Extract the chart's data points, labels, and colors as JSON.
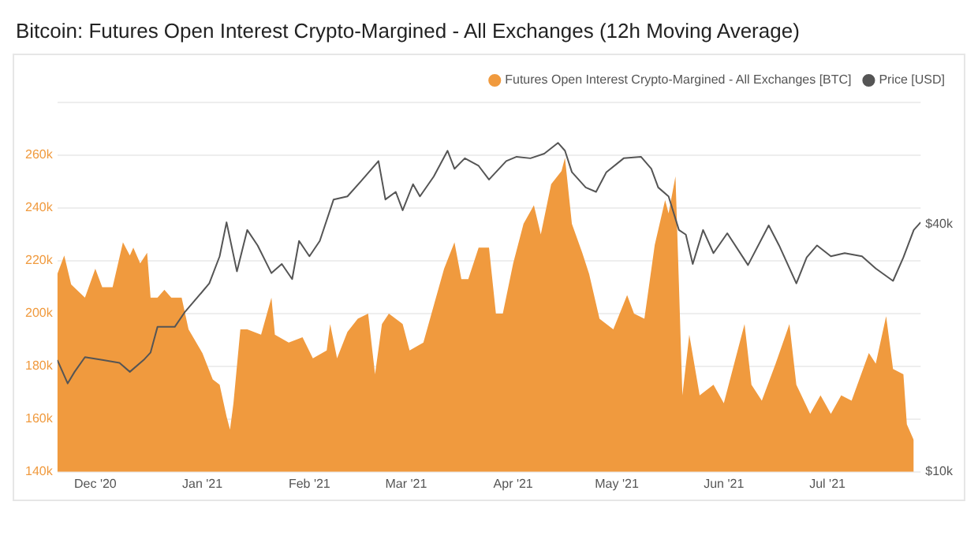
{
  "chart_data": {
    "type": "area",
    "title": "Bitcoin: Futures Open Interest Crypto-Margined - All Exchanges (12h Moving Average)",
    "xlim": [
      "2020-11-20",
      "2021-07-28"
    ],
    "xticks": [
      {
        "value": "2020-12-01",
        "label": "Dec '20"
      },
      {
        "value": "2021-01-01",
        "label": "Jan '21"
      },
      {
        "value": "2021-02-01",
        "label": "Feb '21"
      },
      {
        "value": "2021-03-01",
        "label": "Mar '21"
      },
      {
        "value": "2021-04-01",
        "label": "Apr '21"
      },
      {
        "value": "2021-05-01",
        "label": "May '21"
      },
      {
        "value": "2021-06-01",
        "label": "Jun '21"
      },
      {
        "value": "2021-07-01",
        "label": "Jul '21"
      }
    ],
    "ylim": [
      140000,
      280000
    ],
    "yticks": [
      {
        "value": 140000,
        "label": "140k"
      },
      {
        "value": 160000,
        "label": "160k"
      },
      {
        "value": 180000,
        "label": "180k"
      },
      {
        "value": 200000,
        "label": "200k"
      },
      {
        "value": 220000,
        "label": "220k"
      },
      {
        "value": 240000,
        "label": "240k"
      },
      {
        "value": 260000,
        "label": "260k"
      },
      {
        "value": 280000,
        "label": null
      }
    ],
    "y2lim": [
      10000,
      79000
    ],
    "y2ticks": [
      {
        "value": 10000,
        "label": "$10k"
      },
      {
        "value": 40000,
        "label": "$40k"
      }
    ],
    "log": "y2",
    "grid": "y",
    "legend": "top right",
    "marker": "none",
    "series": [
      {
        "name": "Futures Open Interest Crypto-Margined - All Exchanges [BTC]",
        "color": "#f09a3e",
        "x": [
          "2020-11-20",
          "2020-11-22",
          "2020-11-24",
          "2020-11-28",
          "2020-12-01",
          "2020-12-03",
          "2020-12-06",
          "2020-12-09",
          "2020-12-11",
          "2020-12-12",
          "2020-12-14",
          "2020-12-16",
          "2020-12-17",
          "2020-12-19",
          "2020-12-21",
          "2020-12-23",
          "2020-12-26",
          "2020-12-28",
          "2021-01-01",
          "2021-01-04",
          "2021-01-06",
          "2021-01-08",
          "2021-01-09",
          "2021-01-10",
          "2021-01-12",
          "2021-01-14",
          "2021-01-18",
          "2021-01-21",
          "2021-01-22",
          "2021-01-26",
          "2021-01-30",
          "2021-02-02",
          "2021-02-06",
          "2021-02-07",
          "2021-02-09",
          "2021-02-12",
          "2021-02-15",
          "2021-02-18",
          "2021-02-20",
          "2021-02-22",
          "2021-02-24",
          "2021-02-28",
          "2021-03-02",
          "2021-03-06",
          "2021-03-09",
          "2021-03-12",
          "2021-03-15",
          "2021-03-17",
          "2021-03-19",
          "2021-03-22",
          "2021-03-25",
          "2021-03-27",
          "2021-03-29",
          "2021-04-01",
          "2021-04-04",
          "2021-04-07",
          "2021-04-09",
          "2021-04-12",
          "2021-04-15",
          "2021-04-16",
          "2021-04-18",
          "2021-04-21",
          "2021-04-23",
          "2021-04-26",
          "2021-04-30",
          "2021-05-04",
          "2021-05-06",
          "2021-05-09",
          "2021-05-12",
          "2021-05-15",
          "2021-05-16",
          "2021-05-18",
          "2021-05-19",
          "2021-05-20",
          "2021-05-22",
          "2021-05-25",
          "2021-05-29",
          "2021-06-01",
          "2021-06-04",
          "2021-06-07",
          "2021-06-09",
          "2021-06-12",
          "2021-06-16",
          "2021-06-20",
          "2021-06-22",
          "2021-06-26",
          "2021-06-29",
          "2021-07-02",
          "2021-07-05",
          "2021-07-08",
          "2021-07-13",
          "2021-07-15",
          "2021-07-18",
          "2021-07-20",
          "2021-07-23",
          "2021-07-24",
          "2021-07-26"
        ],
        "values": [
          215000,
          222000,
          211000,
          206000,
          217000,
          210000,
          210000,
          227000,
          222000,
          225000,
          219000,
          223000,
          206000,
          206000,
          209000,
          206000,
          206000,
          194000,
          185000,
          175000,
          173000,
          161000,
          156000,
          166000,
          194000,
          194000,
          192000,
          206000,
          192000,
          189000,
          191000,
          183000,
          186000,
          196000,
          183000,
          193000,
          198000,
          200000,
          177000,
          196000,
          200000,
          196000,
          186000,
          189000,
          203000,
          217000,
          227000,
          213000,
          213000,
          225000,
          225000,
          200000,
          200000,
          219000,
          234000,
          241000,
          230000,
          249000,
          254000,
          259000,
          234000,
          223000,
          215000,
          198000,
          194000,
          207000,
          200000,
          198000,
          226000,
          243000,
          238000,
          252000,
          211000,
          169000,
          192000,
          169000,
          173000,
          166000,
          181000,
          196000,
          173000,
          167000,
          181000,
          196000,
          173000,
          162000,
          169000,
          162000,
          169000,
          167000,
          185000,
          181000,
          199000,
          179000,
          177000,
          158000,
          152000
        ]
      },
      {
        "name": "Price [USD]",
        "type": "line",
        "axis": "y2",
        "color": "#555555",
        "x": [
          "2020-11-20",
          "2020-11-23",
          "2020-11-25",
          "2020-11-28",
          "2020-12-03",
          "2020-12-08",
          "2020-12-11",
          "2020-12-15",
          "2020-12-17",
          "2020-12-19",
          "2020-12-24",
          "2020-12-27",
          "2020-12-31",
          "2021-01-03",
          "2021-01-06",
          "2021-01-08",
          "2021-01-11",
          "2021-01-14",
          "2021-01-17",
          "2021-01-21",
          "2021-01-24",
          "2021-01-27",
          "2021-01-29",
          "2021-02-01",
          "2021-02-04",
          "2021-02-08",
          "2021-02-12",
          "2021-02-16",
          "2021-02-21",
          "2021-02-23",
          "2021-02-26",
          "2021-02-28",
          "2021-03-03",
          "2021-03-05",
          "2021-03-09",
          "2021-03-13",
          "2021-03-15",
          "2021-03-18",
          "2021-03-22",
          "2021-03-25",
          "2021-03-30",
          "2021-04-02",
          "2021-04-06",
          "2021-04-10",
          "2021-04-14",
          "2021-04-16",
          "2021-04-18",
          "2021-04-22",
          "2021-04-25",
          "2021-04-28",
          "2021-05-03",
          "2021-05-08",
          "2021-05-11",
          "2021-05-13",
          "2021-05-16",
          "2021-05-19",
          "2021-05-21",
          "2021-05-23",
          "2021-05-26",
          "2021-05-29",
          "2021-06-02",
          "2021-06-08",
          "2021-06-14",
          "2021-06-17",
          "2021-06-22",
          "2021-06-25",
          "2021-06-28",
          "2021-07-02",
          "2021-07-06",
          "2021-07-11",
          "2021-07-15",
          "2021-07-20",
          "2021-07-23",
          "2021-07-26",
          "2021-07-28"
        ],
        "values": [
          18700,
          16400,
          17500,
          19000,
          18700,
          18400,
          17500,
          18700,
          19500,
          22500,
          22500,
          24500,
          26800,
          28700,
          33400,
          40400,
          30700,
          38700,
          35500,
          30400,
          32000,
          29400,
          36400,
          33400,
          36400,
          45900,
          46700,
          50900,
          56900,
          45900,
          47900,
          43200,
          50000,
          46700,
          52200,
          60300,
          54500,
          57800,
          55400,
          51300,
          56900,
          58300,
          57800,
          59300,
          63000,
          60300,
          53500,
          49100,
          47900,
          53500,
          57800,
          58300,
          54500,
          49100,
          46700,
          38700,
          37700,
          32000,
          38700,
          34000,
          38000,
          31800,
          39700,
          35500,
          28700,
          33200,
          35500,
          33400,
          34000,
          33400,
          31200,
          29100,
          33200,
          38700,
          40400
        ]
      }
    ]
  }
}
